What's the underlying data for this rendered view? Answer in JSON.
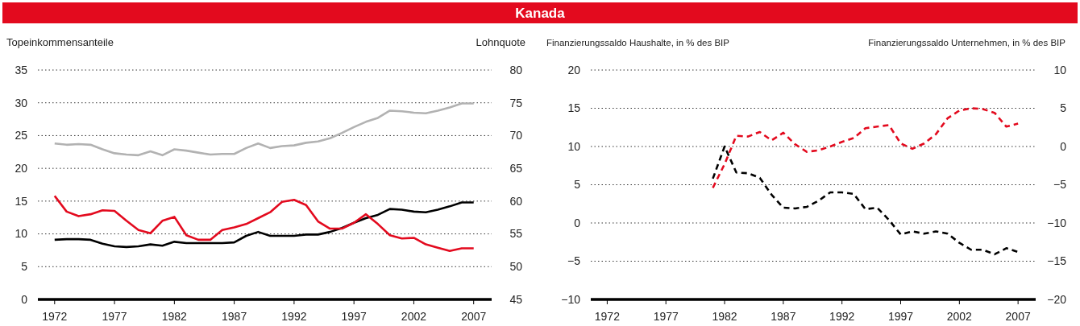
{
  "chart_data": [
    {
      "type": "line",
      "title": "Kanada",
      "ylabel": "Topeinkommensanteile",
      "y2label": "Lohnquote",
      "xlim": [
        1970.6,
        2008.5
      ],
      "xticks": [
        1972,
        1977,
        1982,
        1987,
        1992,
        1997,
        2002,
        2007
      ],
      "ylim": [
        0,
        35
      ],
      "yticks": [
        0,
        5,
        10,
        15,
        20,
        25,
        30,
        35
      ],
      "y2lim": [
        45,
        80
      ],
      "y2ticks": [
        45,
        50,
        55,
        60,
        65,
        70,
        75,
        80
      ],
      "grid": "y",
      "line_style": "solid",
      "x": [
        1972,
        1973,
        1974,
        1975,
        1976,
        1977,
        1978,
        1979,
        1980,
        1981,
        1982,
        1983,
        1984,
        1985,
        1986,
        1987,
        1988,
        1989,
        1990,
        1991,
        1992,
        1993,
        1994,
        1995,
        1996,
        1997,
        1998,
        1999,
        2000,
        2001,
        2002,
        2003,
        2004,
        2005,
        2006,
        2007
      ],
      "series": [
        {
          "color": "#b2b2b2",
          "values": [
            23.8,
            23.6,
            23.7,
            23.6,
            22.9,
            22.3,
            22.1,
            22.0,
            22.6,
            22.0,
            22.9,
            22.7,
            22.4,
            22.1,
            22.2,
            22.2,
            23.1,
            23.8,
            23.1,
            23.4,
            23.5,
            23.9,
            24.1,
            24.6,
            25.4,
            26.3,
            27.1,
            27.7,
            28.8,
            28.7,
            28.5,
            28.4,
            28.8,
            29.3,
            29.9,
            29.9
          ]
        },
        {
          "color": "#000000",
          "values": [
            9.1,
            9.2,
            9.2,
            9.1,
            8.5,
            8.1,
            8.0,
            8.1,
            8.4,
            8.2,
            8.8,
            8.6,
            8.6,
            8.6,
            8.6,
            8.7,
            9.7,
            10.3,
            9.7,
            9.7,
            9.7,
            9.9,
            9.9,
            10.3,
            10.9,
            11.7,
            12.4,
            12.9,
            13.8,
            13.7,
            13.4,
            13.3,
            13.7,
            14.2,
            14.8,
            14.8
          ]
        },
        {
          "color": "#e30a1e",
          "axis": "y2",
          "values": [
            60.8,
            58.4,
            57.7,
            58.0,
            58.6,
            58.5,
            57.0,
            55.6,
            55.1,
            57.0,
            57.6,
            54.8,
            54.1,
            54.1,
            55.6,
            56.0,
            56.5,
            57.4,
            58.3,
            59.9,
            60.2,
            59.4,
            56.9,
            55.8,
            55.8,
            56.7,
            58.0,
            56.5,
            54.8,
            54.3,
            54.4,
            53.4,
            52.9,
            52.4,
            52.8,
            52.8
          ]
        }
      ]
    },
    {
      "type": "line",
      "ylabel": "Finanzierungssaldo Haushalte, in % des BIP",
      "y2label": "Finanzierungssaldo Unternehmen, in % des BIP",
      "xlim": [
        1970.6,
        2008.5
      ],
      "xticks": [
        1972,
        1977,
        1982,
        1987,
        1992,
        1997,
        2002,
        2007
      ],
      "ylim": [
        -10,
        20
      ],
      "yticks": [
        {
          "value": -10,
          "label": "−10"
        },
        {
          "value": -5,
          "label": "−5"
        },
        0,
        5,
        10,
        15,
        20
      ],
      "y2lim": [
        -20,
        10
      ],
      "y2ticks": [
        {
          "value": -20,
          "label": "−20"
        },
        {
          "value": -15,
          "label": "−15"
        },
        {
          "value": -10,
          "label": "−10"
        },
        {
          "value": -5,
          "label": "−5"
        },
        0,
        5,
        10
      ],
      "grid": "y",
      "line_style": "dashed",
      "x": [
        1981,
        1982,
        1983,
        1984,
        1985,
        1986,
        1987,
        1988,
        1989,
        1990,
        1991,
        1992,
        1993,
        1994,
        1995,
        1996,
        1997,
        1998,
        1999,
        2000,
        2001,
        2002,
        2003,
        2004,
        2005,
        2006,
        2007
      ],
      "series": [
        {
          "color": "#000000",
          "values": [
            5.8,
            10.0,
            6.6,
            6.5,
            5.9,
            3.7,
            2.0,
            1.9,
            2.1,
            2.9,
            4.0,
            4.0,
            3.8,
            1.8,
            2.0,
            0.4,
            -1.5,
            -1.1,
            -1.4,
            -1.1,
            -1.4,
            -2.6,
            -3.5,
            -3.5,
            -4.1,
            -3.3,
            -3.8
          ]
        },
        {
          "color": "#e30a1e",
          "axis": "y2",
          "values": [
            -5.4,
            -2.3,
            1.4,
            1.3,
            1.9,
            0.8,
            1.8,
            0.3,
            -0.7,
            -0.5,
            0.0,
            0.6,
            1.1,
            2.4,
            2.6,
            2.8,
            0.4,
            -0.3,
            0.4,
            1.6,
            3.7,
            4.7,
            5.0,
            4.9,
            4.4,
            2.6,
            3.0
          ]
        }
      ]
    }
  ]
}
